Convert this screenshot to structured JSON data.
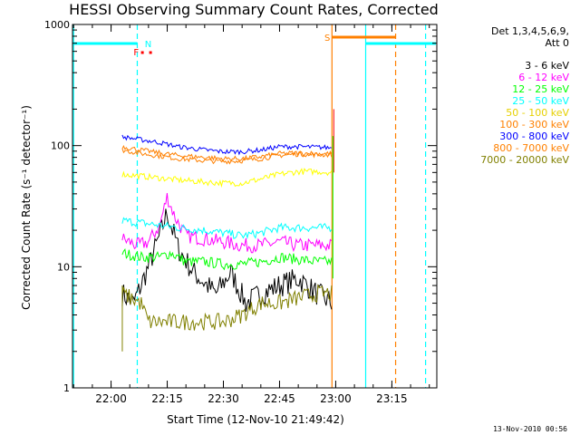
{
  "chart_data": {
    "type": "line",
    "title": "HESSI Observing Summary Count Rates, Corrected",
    "xlabel": "Start Time (12-Nov-10 21:49:42)",
    "ylabel": "Corrected Count Rate (s⁻¹ detector⁻¹)",
    "yscale": "log",
    "xlim": [
      "21:49:42",
      "23:27:00"
    ],
    "ylim": [
      1,
      1000
    ],
    "x_ticks": [
      "22:00",
      "22:15",
      "22:30",
      "22:45",
      "23:00",
      "23:15"
    ],
    "y_ticks": [
      "1",
      "10",
      "100",
      "1000"
    ],
    "legend_title_lines": [
      "Det 1,3,4,5,6,9,",
      "Att 0"
    ],
    "legend_position": "top-right",
    "series": [
      {
        "name": "3 - 6 keV",
        "color": "#000000",
        "x": [
          "22:03",
          "22:06",
          "22:08",
          "22:10",
          "22:13",
          "22:15",
          "22:18",
          "22:22",
          "22:28",
          "22:32",
          "22:36",
          "22:40",
          "22:45",
          "22:50",
          "22:55",
          "22:59"
        ],
        "y": [
          6,
          5,
          7,
          10,
          18,
          28,
          14,
          9,
          6,
          9,
          5,
          6,
          7,
          8,
          6,
          5
        ]
      },
      {
        "name": "6 - 12 keV",
        "color": "#ff00ff",
        "x": [
          "22:03",
          "22:07",
          "22:10",
          "22:13",
          "22:15",
          "22:17",
          "22:20",
          "22:25",
          "22:30",
          "22:35",
          "22:40",
          "22:45",
          "22:50",
          "22:55",
          "22:59"
        ],
        "y": [
          17,
          15,
          16,
          22,
          38,
          26,
          18,
          17,
          16,
          15,
          15,
          16,
          15,
          15,
          15
        ]
      },
      {
        "name": "12 - 25 keV",
        "color": "#00ff00",
        "x": [
          "22:03",
          "22:08",
          "22:13",
          "22:16",
          "22:20",
          "22:25",
          "22:30",
          "22:35",
          "22:40",
          "22:45",
          "22:50",
          "22:55",
          "22:59"
        ],
        "y": [
          13,
          12,
          12,
          13,
          11,
          11,
          10.5,
          10.5,
          11,
          12,
          11.5,
          11,
          11
        ]
      },
      {
        "name": "25 - 50 keV",
        "color": "#00ffff",
        "x": [
          "22:03",
          "22:08",
          "22:13",
          "22:18",
          "22:25",
          "22:30",
          "22:35",
          "22:40",
          "22:45",
          "22:50",
          "22:55",
          "22:59"
        ],
        "y": [
          24,
          23,
          22,
          21,
          20,
          19,
          18,
          19,
          21,
          21,
          21,
          21
        ]
      },
      {
        "name": "50 - 100 keV",
        "color": "#ffff00",
        "x": [
          "22:03",
          "22:08",
          "22:13",
          "22:18",
          "22:25",
          "22:30",
          "22:35",
          "22:40",
          "22:45",
          "22:50",
          "22:55",
          "22:59"
        ],
        "y": [
          58,
          56,
          54,
          52,
          50,
          49,
          49,
          53,
          58,
          61,
          61,
          60
        ]
      },
      {
        "name": "100 - 300 keV",
        "color": "#ff8000",
        "x": [
          "22:03",
          "22:08",
          "22:13",
          "22:18",
          "22:25",
          "22:30",
          "22:35",
          "22:40",
          "22:45",
          "22:50",
          "22:55",
          "22:59"
        ],
        "y": [
          92,
          86,
          82,
          78,
          75,
          74,
          75,
          78,
          83,
          85,
          84,
          84
        ]
      },
      {
        "name": "300 - 800 keV",
        "color": "#0000ff",
        "x": [
          "22:03",
          "22:08",
          "22:13",
          "22:18",
          "22:25",
          "22:30",
          "22:35",
          "22:40",
          "22:45",
          "22:50",
          "22:55",
          "22:59"
        ],
        "y": [
          118,
          112,
          106,
          98,
          92,
          89,
          89,
          92,
          98,
          98,
          97,
          96
        ]
      },
      {
        "name": "800 - 7000 keV",
        "color": "#ff8000",
        "x": [
          "22:03",
          "22:08",
          "22:13",
          "22:18",
          "22:25",
          "22:30",
          "22:35",
          "22:40",
          "22:45",
          "22:50",
          "22:55",
          "22:59"
        ],
        "y": [
          98,
          92,
          87,
          83,
          80,
          78,
          78,
          81,
          86,
          87,
          86,
          86
        ]
      },
      {
        "name": "7000 - 20000 keV",
        "color": "#808000",
        "x": [
          "22:03",
          "22:08",
          "22:10",
          "22:15",
          "22:20",
          "22:25",
          "22:30",
          "22:35",
          "22:40",
          "22:45",
          "22:50",
          "22:55",
          "22:59"
        ],
        "y": [
          6,
          5,
          3.5,
          3.5,
          3.5,
          3.5,
          3.5,
          4,
          5,
          5,
          5.5,
          6,
          6
        ]
      }
    ],
    "annotations": [
      {
        "label": "N",
        "color": "#00ffff"
      },
      {
        "label": "F",
        "color": "#ff0000"
      },
      {
        "label": "S",
        "color": "#ff8000"
      }
    ],
    "footer": "13-Nov-2010 00:56"
  }
}
